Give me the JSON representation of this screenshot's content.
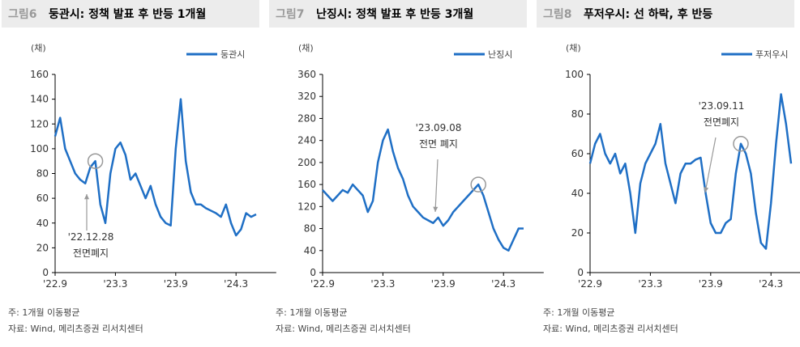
{
  "chart_data": [
    {
      "type": "line",
      "figure_label": "그림6",
      "title": "둥관시: 정책 발표 후 반등 1개월",
      "y_unit": "(채)",
      "categories": [
        "'22.9",
        null,
        null,
        null,
        null,
        null,
        null,
        null,
        null,
        null,
        null,
        null,
        "'23.3",
        null,
        null,
        null,
        null,
        null,
        null,
        null,
        null,
        null,
        null,
        null,
        "'23.9",
        null,
        null,
        null,
        null,
        null,
        null,
        null,
        null,
        null,
        null,
        null,
        "'24.3",
        null,
        null,
        null,
        null
      ],
      "series": [
        {
          "name": "둥관시",
          "color": "#1f6fc5",
          "values": [
            110,
            125,
            100,
            90,
            80,
            75,
            72,
            85,
            90,
            55,
            40,
            80,
            100,
            105,
            95,
            75,
            80,
            70,
            60,
            70,
            55,
            45,
            40,
            38,
            100,
            140,
            90,
            65,
            55,
            55,
            52,
            50,
            48,
            45,
            55,
            40,
            30,
            35,
            48,
            45,
            47
          ]
        }
      ],
      "ylim": [
        0,
        160
      ],
      "yticks": [
        0,
        20,
        40,
        60,
        80,
        100,
        120,
        140,
        160
      ],
      "annotation": {
        "date": "'22.12.28",
        "text": "전면폐지"
      },
      "note": "주: 1개월 이동평균",
      "source": "자료: Wind, 메리츠증권 리서치센터"
    },
    {
      "type": "line",
      "figure_label": "그림7",
      "title": "난징시: 정책 발표 후 반등 3개월",
      "y_unit": "(채)",
      "categories": [
        "'22.9",
        null,
        null,
        null,
        null,
        null,
        null,
        null,
        null,
        null,
        null,
        null,
        "'23.3",
        null,
        null,
        null,
        null,
        null,
        null,
        null,
        null,
        null,
        null,
        null,
        "'23.9",
        null,
        null,
        null,
        null,
        null,
        null,
        null,
        null,
        null,
        null,
        null,
        "'24.3",
        null,
        null,
        null,
        null
      ],
      "series": [
        {
          "name": "난징시",
          "color": "#1f6fc5",
          "values": [
            150,
            140,
            130,
            140,
            150,
            145,
            160,
            150,
            140,
            110,
            130,
            200,
            240,
            260,
            220,
            190,
            170,
            140,
            120,
            110,
            100,
            95,
            90,
            100,
            85,
            95,
            110,
            120,
            130,
            140,
            150,
            160,
            140,
            110,
            80,
            60,
            45,
            40,
            60,
            80,
            80
          ]
        }
      ],
      "ylim": [
        0,
        360
      ],
      "yticks": [
        0,
        40,
        80,
        120,
        160,
        200,
        240,
        280,
        320,
        360
      ],
      "annotation": {
        "date": "'23.09.08",
        "text": "전면 폐지"
      },
      "note": "주: 1개월 이동평균",
      "source": "자료: Wind, 메리츠증권 리서치센터"
    },
    {
      "type": "line",
      "figure_label": "그림8",
      "title": "푸저우시: 선 하락, 후 반등",
      "y_unit": "(채)",
      "categories": [
        "'22.9",
        null,
        null,
        null,
        null,
        null,
        null,
        null,
        null,
        null,
        null,
        null,
        "'23.3",
        null,
        null,
        null,
        null,
        null,
        null,
        null,
        null,
        null,
        null,
        null,
        "'23.9",
        null,
        null,
        null,
        null,
        null,
        null,
        null,
        null,
        null,
        null,
        null,
        "'24.3",
        null,
        null,
        null,
        null
      ],
      "series": [
        {
          "name": "푸저우시",
          "color": "#1f6fc5",
          "values": [
            55,
            65,
            70,
            60,
            55,
            60,
            50,
            55,
            40,
            20,
            45,
            55,
            60,
            65,
            75,
            55,
            45,
            35,
            50,
            55,
            55,
            57,
            58,
            40,
            25,
            20,
            20,
            25,
            27,
            50,
            65,
            60,
            50,
            30,
            15,
            12,
            35,
            65,
            90,
            75,
            55
          ]
        }
      ],
      "ylim": [
        0,
        100
      ],
      "yticks": [
        0,
        20,
        40,
        60,
        80,
        100
      ],
      "annotation": {
        "date": "'23.09.11",
        "text": "전면폐지"
      },
      "note": "주: 1개월 이동평균",
      "source": "자료: Wind, 메리츠증권 리서치센터"
    }
  ]
}
